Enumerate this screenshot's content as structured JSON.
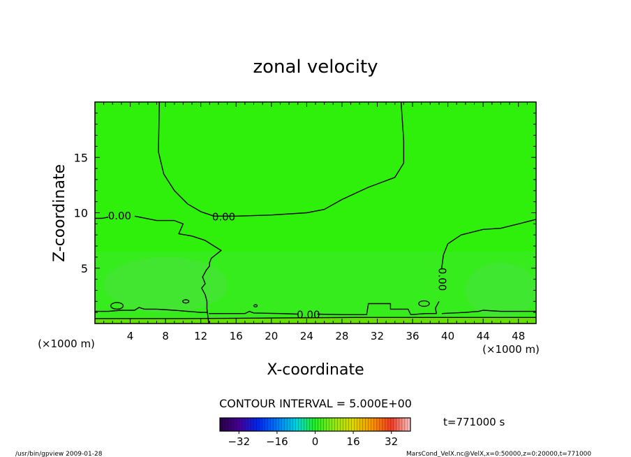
{
  "chart_data": {
    "type": "heatmap",
    "title": "zonal velocity",
    "xlabel": "X-coordinate",
    "ylabel": "Z-coordinate",
    "x_unit_left": "(×1000 m)",
    "x_unit_right": "(×1000 m)",
    "xlim": [
      0,
      50
    ],
    "ylim": [
      0,
      20
    ],
    "xticks": [
      4,
      8,
      12,
      16,
      20,
      24,
      28,
      32,
      36,
      40,
      44,
      48
    ],
    "yticks": [
      5,
      10,
      15
    ],
    "contour_interval_text": "CONTOUR INTERVAL = 5.000E+00",
    "contour_labels": [
      {
        "text": "0.00",
        "x": 2.8,
        "z": 9.7
      },
      {
        "text": "0.00",
        "x": 14.6,
        "z": 9.6
      },
      {
        "text": "0.00",
        "x": 24.2,
        "z": 0.75
      },
      {
        "text": "0.00",
        "x": 39.3,
        "z": 4.0,
        "rotate": 90
      }
    ],
    "contours": [
      [
        [
          7.3,
          20
        ],
        [
          7.2,
          15.5
        ],
        [
          7.8,
          13.5
        ],
        [
          9,
          12
        ],
        [
          10.5,
          10.8
        ],
        [
          12,
          10.1
        ],
        [
          13.5,
          9.7
        ],
        [
          16,
          9.7
        ],
        [
          20,
          9.8
        ],
        [
          24,
          10
        ],
        [
          26,
          10.3
        ],
        [
          28,
          11.2
        ],
        [
          31,
          12.3
        ],
        [
          34,
          13.2
        ],
        [
          35,
          14.5
        ],
        [
          35,
          16.5
        ],
        [
          34.7,
          20
        ]
      ],
      [
        [
          1.5,
          9.6
        ],
        [
          0.8,
          9.5
        ],
        [
          0,
          9.5
        ]
      ],
      [
        [
          4.5,
          9.7
        ],
        [
          7,
          9.3
        ],
        [
          9,
          9.3
        ],
        [
          10,
          9.0
        ],
        [
          9.5,
          8.1
        ],
        [
          11,
          7.9
        ],
        [
          12.5,
          7.5
        ],
        [
          13.5,
          7.0
        ],
        [
          14.3,
          6.6
        ],
        [
          13.2,
          5.9
        ],
        [
          13,
          5.5
        ],
        [
          13,
          5.2
        ],
        [
          12.6,
          4.8
        ],
        [
          12.2,
          4.2
        ],
        [
          12.5,
          3.6
        ],
        [
          12.1,
          3.2
        ],
        [
          12.5,
          2.6
        ],
        [
          12.7,
          2.0
        ],
        [
          12.7,
          1.3
        ],
        [
          12.9,
          0
        ]
      ],
      [
        [
          0,
          1.1
        ],
        [
          1.5,
          1.1
        ],
        [
          3,
          1.2
        ],
        [
          4.5,
          1.2
        ],
        [
          5,
          1.45
        ],
        [
          5.6,
          1.3
        ],
        [
          7,
          1.3
        ],
        [
          9,
          1.2
        ],
        [
          10.5,
          1.1
        ],
        [
          12,
          1.0
        ],
        [
          12.7,
          1.0
        ]
      ],
      [
        [
          12.9,
          0.9
        ],
        [
          15,
          0.9
        ],
        [
          17,
          0.9
        ],
        [
          17.5,
          1.1
        ],
        [
          18,
          0.95
        ],
        [
          21,
          0.9
        ],
        [
          23,
          0.85
        ]
      ],
      [
        [
          25.2,
          0.85
        ],
        [
          28,
          0.8
        ],
        [
          30.8,
          0.8
        ],
        [
          31,
          1.8
        ],
        [
          33.5,
          1.8
        ],
        [
          33.5,
          1.3
        ],
        [
          35.5,
          1.3
        ],
        [
          35.8,
          0.8
        ],
        [
          37.5,
          0.9
        ],
        [
          38.7,
          0.9
        ],
        [
          38.6,
          1.4
        ],
        [
          39,
          2.0
        ]
      ],
      [
        [
          39.3,
          5.0
        ],
        [
          39.5,
          6.2
        ],
        [
          40,
          7.2
        ],
        [
          41.5,
          8.0
        ],
        [
          44,
          8.5
        ],
        [
          46,
          8.6
        ],
        [
          48,
          9.0
        ],
        [
          50,
          9.4
        ]
      ],
      [
        [
          39.3,
          0.9
        ],
        [
          42,
          1.0
        ],
        [
          43.5,
          1.1
        ],
        [
          44,
          1.2
        ],
        [
          46,
          1.1
        ],
        [
          48,
          1.1
        ],
        [
          50,
          1.1
        ]
      ],
      [
        [
          0,
          0.45
        ],
        [
          10,
          0.45
        ],
        [
          20,
          0.5
        ],
        [
          30,
          0.55
        ],
        [
          40,
          0.55
        ],
        [
          50,
          0.55
        ]
      ]
    ],
    "small_loops": [
      {
        "x": 2.5,
        "z": 1.6,
        "rx": 0.7,
        "rz": 0.3
      },
      {
        "x": 10.3,
        "z": 2.0,
        "rx": 0.35,
        "rz": 0.15
      },
      {
        "x": 37.3,
        "z": 1.8,
        "rx": 0.6,
        "rz": 0.25
      },
      {
        "x": 18.2,
        "z": 1.6,
        "rx": 0.2,
        "rz": 0.1
      }
    ],
    "fill_colors": {
      "background": "#2ff00a",
      "lower_band": "#3eea2e",
      "patch": "#49e33f",
      "bottom_strip": "#66e000"
    },
    "colorbar": {
      "min": -40,
      "max": 40,
      "tick_values": [
        -32,
        -16,
        0,
        16,
        32
      ],
      "tick_labels": [
        "−32",
        "−16",
        "0",
        "16",
        "32"
      ]
    },
    "time_label": "t=771000 s",
    "footer_left": "/usr/bin/gpview   2009-01-28",
    "footer_right": "MarsCond_VelX.nc@VelX,x=0:50000,z=0:20000,t=771000"
  }
}
